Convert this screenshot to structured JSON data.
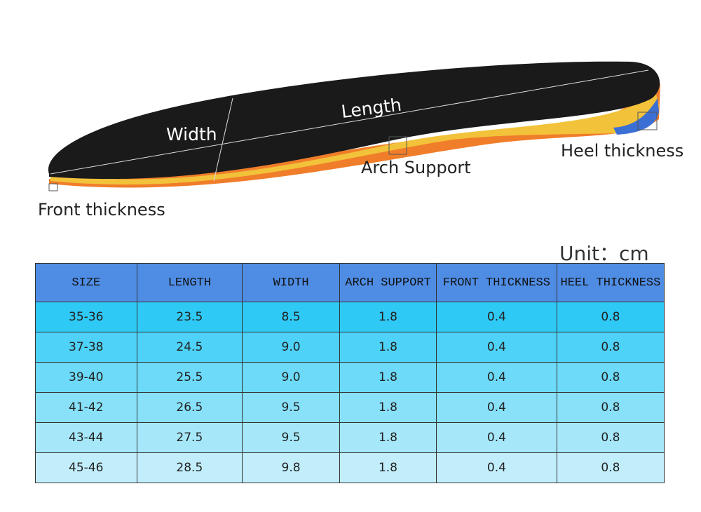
{
  "labels": {
    "width": "Width",
    "length": "Length",
    "heel": "Heel thickness",
    "arch": "Arch Support",
    "front": "Front thickness"
  },
  "unit": "Unit：cm",
  "table": {
    "header": [
      "SIZE",
      "LENGTH",
      "WIDTH",
      "ARCH SUPPORT",
      "FRONT THICKNESS",
      "HEEL THICKNESS"
    ],
    "rows": [
      [
        "35-36",
        "23.5",
        "8.5",
        "1.8",
        "0.4",
        "0.8"
      ],
      [
        "37-38",
        "24.5",
        "9.0",
        "1.8",
        "0.4",
        "0.8"
      ],
      [
        "39-40",
        "25.5",
        "9.0",
        "1.8",
        "0.4",
        "0.8"
      ],
      [
        "41-42",
        "26.5",
        "9.5",
        "1.8",
        "0.4",
        "0.8"
      ],
      [
        "43-44",
        "27.5",
        "9.5",
        "1.8",
        "0.4",
        "0.8"
      ],
      [
        "45-46",
        "28.5",
        "9.8",
        "1.8",
        "0.4",
        "0.8"
      ]
    ]
  }
}
